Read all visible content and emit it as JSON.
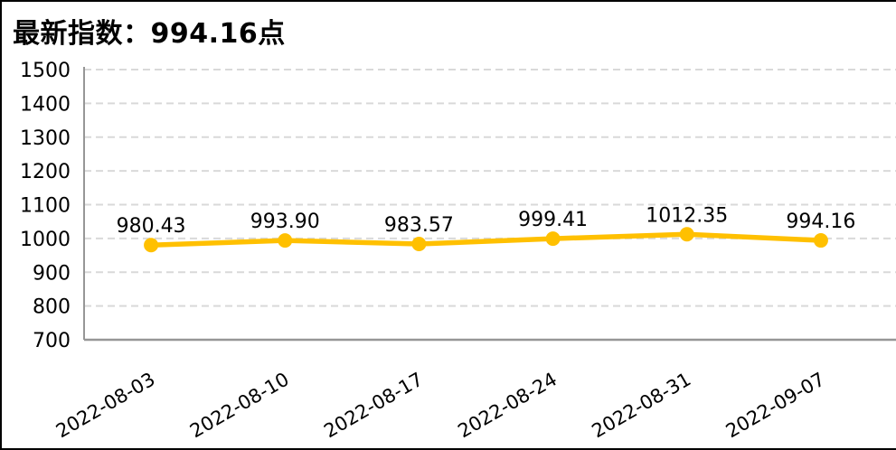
{
  "chart_data": {
    "type": "line",
    "title": "最新指数：994.16点",
    "x": [
      "2022-08-03",
      "2022-08-10",
      "2022-08-17",
      "2022-08-24",
      "2022-08-31",
      "2022-09-07"
    ],
    "series": [
      {
        "name": "指数",
        "values": [
          980.43,
          993.9,
          983.57,
          999.41,
          1012.35,
          994.16
        ]
      }
    ],
    "data_labels": [
      "980.43",
      "993.90",
      "983.57",
      "999.41",
      "1012.35",
      "994.16"
    ],
    "ylim": [
      700,
      1500
    ],
    "ytick_step": 100,
    "ytick_labels": [
      "1500",
      "1400",
      "1300",
      "1200",
      "1100",
      "1000",
      "900",
      "800",
      "700"
    ],
    "xlabel": "",
    "ylabel": "",
    "legend": "none",
    "grid": "horizontal-dashed",
    "colors": {
      "line": "#FFC000",
      "marker": "#FFC000",
      "gridline": "#D9D9D9",
      "axis": "#969696",
      "text": "#000000"
    }
  }
}
